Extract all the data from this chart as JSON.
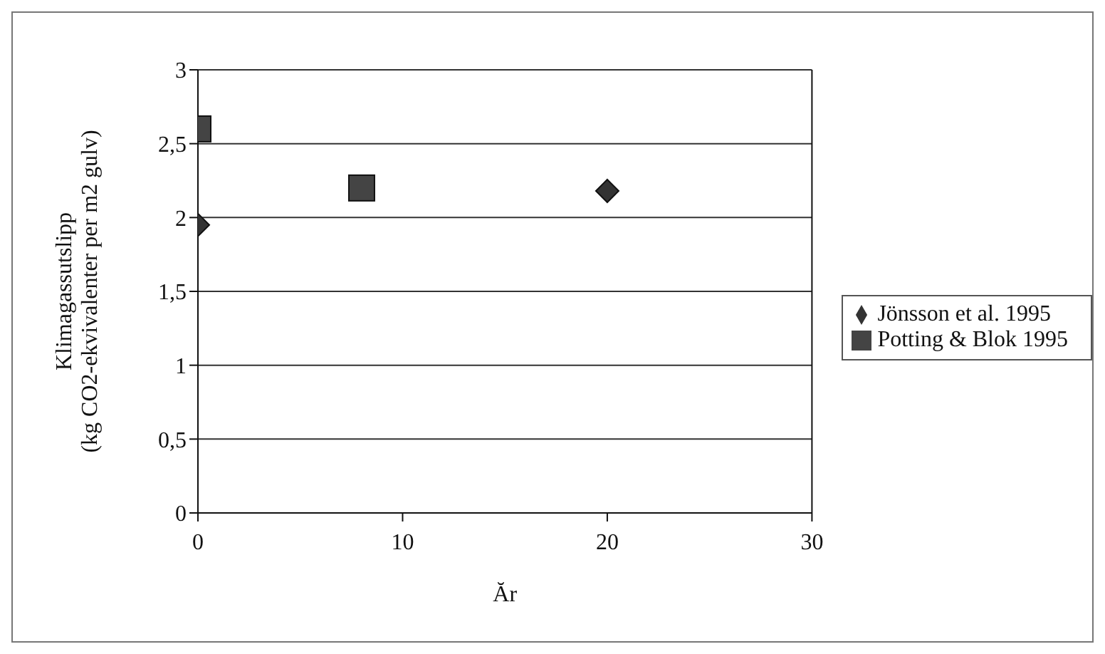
{
  "chart_data": {
    "type": "scatter",
    "xlabel": "Ăr",
    "ylabel": "Klimagassutslipp\n(kg CO2-ekvivalenter per m2 gulv)",
    "xlim": [
      0,
      30
    ],
    "xticks": [
      0,
      10,
      20,
      30
    ],
    "ylim": [
      0,
      3
    ],
    "yticks": [
      0,
      {
        "value": 0.5,
        "label": "0,5"
      },
      1,
      {
        "value": 1.5,
        "label": "1,5"
      },
      2,
      {
        "value": 2.5,
        "label": "2,5"
      },
      3
    ],
    "grid": "y",
    "legend": "right",
    "series": [
      {
        "name": "Jönsson et al. 1995",
        "color": "#333333",
        "marker": "diamond",
        "x": [
          0,
          20
        ],
        "values": [
          1.95,
          2.18
        ]
      },
      {
        "name": "Potting & Blok 1995",
        "color": "#444444",
        "marker": "square",
        "x": [
          0,
          8
        ],
        "values": [
          2.6,
          2.2
        ]
      }
    ]
  }
}
